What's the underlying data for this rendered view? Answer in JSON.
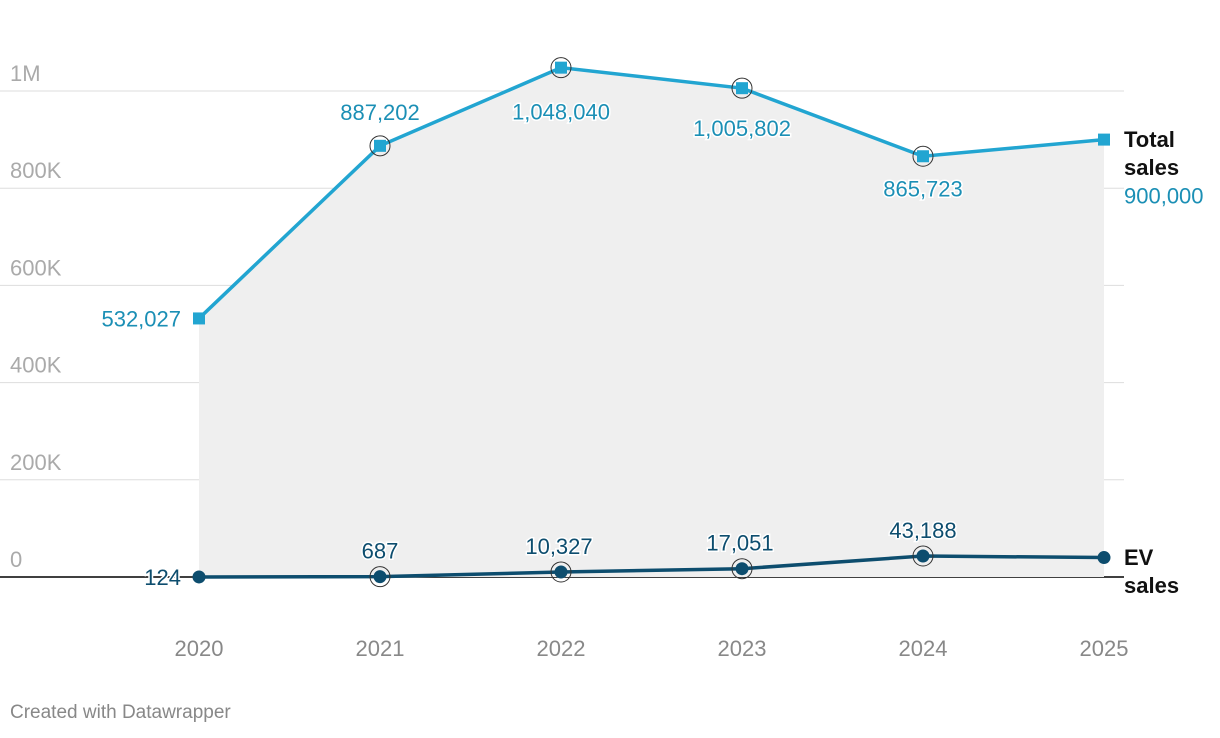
{
  "chart_data": {
    "type": "line",
    "categories": [
      "2020",
      "2021",
      "2022",
      "2023",
      "2024",
      "2025"
    ],
    "series": [
      {
        "name": "Total sales",
        "color": "#22a5d1",
        "label_color": "#1b8fb5",
        "marker": "square",
        "values": [
          532027,
          887202,
          1048040,
          1005802,
          865723,
          900000
        ],
        "value_labels": [
          "532,027",
          "887,202",
          "1,048,040",
          "1,005,802",
          "865,723",
          "900,000"
        ]
      },
      {
        "name": "EV sales",
        "color": "#0d4d6e",
        "label_color": "#0d4d6e",
        "marker": "circle",
        "values": [
          124,
          687,
          10327,
          17051,
          43188,
          40000
        ],
        "value_labels": [
          "124",
          "687",
          "10,327",
          "17,051",
          "43,188",
          null
        ]
      }
    ],
    "ylim": [
      0,
      1100000
    ],
    "yticks": [
      0,
      {
        "value": 200000,
        "label": "200K"
      },
      {
        "value": 400000,
        "label": "400K"
      },
      {
        "value": 600000,
        "label": "600K"
      },
      {
        "value": 800000,
        "label": "800K"
      },
      {
        "value": 1000000,
        "label": "1M"
      }
    ],
    "grid": true,
    "footer": "Created with Datawrapper"
  }
}
